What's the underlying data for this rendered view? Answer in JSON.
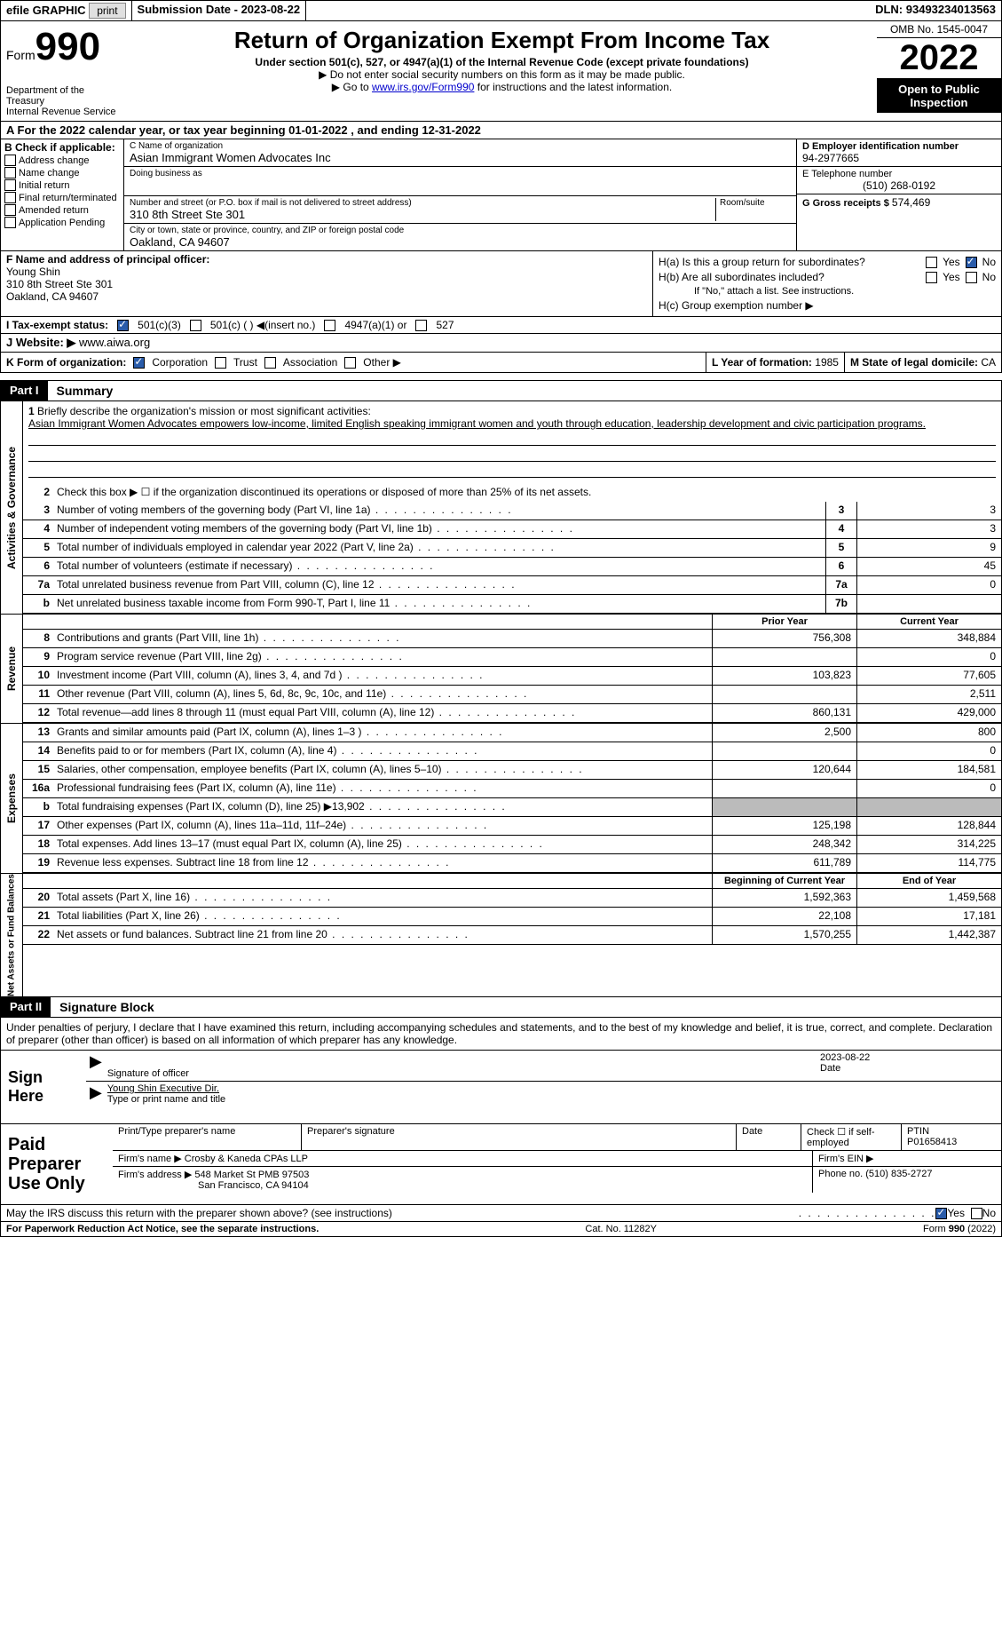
{
  "topbar": {
    "efile": "efile GRAPHIC",
    "print": "print",
    "subdate_label": "Submission Date - ",
    "subdate": "2023-08-22",
    "dln_label": "DLN: ",
    "dln": "93493234013563"
  },
  "header": {
    "form_word": "Form",
    "form_num": "990",
    "dept": "Department of the Treasury",
    "irs": "Internal Revenue Service",
    "title": "Return of Organization Exempt From Income Tax",
    "subtitle": "Under section 501(c), 527, or 4947(a)(1) of the Internal Revenue Code (except private foundations)",
    "note1": "▶ Do not enter social security numbers on this form as it may be made public.",
    "note2_pre": "▶ Go to ",
    "note2_link": "www.irs.gov/Form990",
    "note2_post": " for instructions and the latest information.",
    "omb": "OMB No. 1545-0047",
    "year": "2022",
    "inspect": "Open to Public Inspection"
  },
  "row_a": "A For the 2022 calendar year, or tax year beginning 01-01-2022   , and ending 12-31-2022",
  "section_b": {
    "header": "B Check if applicable:",
    "items": [
      "Address change",
      "Name change",
      "Initial return",
      "Final return/terminated",
      "Amended return",
      "Application Pending"
    ]
  },
  "section_c": {
    "name_label": "C Name of organization",
    "name": "Asian Immigrant Women Advocates Inc",
    "dba_label": "Doing business as",
    "dba": "",
    "addr_label": "Number and street (or P.O. box if mail is not delivered to street address)",
    "room_label": "Room/suite",
    "addr": "310 8th Street Ste 301",
    "city_label": "City or town, state or province, country, and ZIP or foreign postal code",
    "city": "Oakland, CA  94607"
  },
  "section_d": {
    "ein_label": "D Employer identification number",
    "ein": "94-2977665",
    "phone_label": "E Telephone number",
    "phone": "(510) 268-0192",
    "receipts_label": "G Gross receipts $ ",
    "receipts": "574,469"
  },
  "section_f": {
    "label": "F  Name and address of principal officer:",
    "name": "Young Shin",
    "addr1": "310 8th Street Ste 301",
    "addr2": "Oakland, CA  94607"
  },
  "section_h": {
    "ha": "H(a)  Is this a group return for subordinates?",
    "hb": "H(b)  Are all subordinates included?",
    "hb_note": "If \"No,\" attach a list. See instructions.",
    "hc": "H(c)  Group exemption number ▶",
    "yes": "Yes",
    "no": "No"
  },
  "tax_status": {
    "label": "I     Tax-exempt status:",
    "opt1": "501(c)(3)",
    "opt2": "501(c) (  ) ◀(insert no.)",
    "opt3": "4947(a)(1) or",
    "opt4": "527"
  },
  "website": {
    "label": "J    Website: ▶  ",
    "value": "www.aiwa.org"
  },
  "form_org": {
    "k": "K Form of organization:",
    "corp": "Corporation",
    "trust": "Trust",
    "assoc": "Association",
    "other": "Other ▶",
    "l": "L Year of formation: ",
    "l_val": "1985",
    "m": "M State of legal domicile: ",
    "m_val": "CA"
  },
  "part1": {
    "label": "Part I",
    "title": "Summary"
  },
  "governance": {
    "tab": "Activities & Governance",
    "q1": "Briefly describe the organization's mission or most significant activities:",
    "mission": "Asian Immigrant Women Advocates empowers low-income, limited English speaking immigrant women and youth through education, leadership development and civic participation programs.",
    "q2": "Check this box ▶ ☐  if the organization discontinued its operations or disposed of more than 25% of its net assets.",
    "lines": [
      {
        "n": "3",
        "t": "Number of voting members of the governing body (Part VI, line 1a)",
        "box": "3",
        "v": "3"
      },
      {
        "n": "4",
        "t": "Number of independent voting members of the governing body (Part VI, line 1b)",
        "box": "4",
        "v": "3"
      },
      {
        "n": "5",
        "t": "Total number of individuals employed in calendar year 2022 (Part V, line 2a)",
        "box": "5",
        "v": "9"
      },
      {
        "n": "6",
        "t": "Total number of volunteers (estimate if necessary)",
        "box": "6",
        "v": "45"
      },
      {
        "n": "7a",
        "t": "Total unrelated business revenue from Part VIII, column (C), line 12",
        "box": "7a",
        "v": "0"
      },
      {
        "n": "b",
        "t": "Net unrelated business taxable income from Form 990-T, Part I, line 11",
        "box": "7b",
        "v": ""
      }
    ]
  },
  "revenue": {
    "tab": "Revenue",
    "head_prior": "Prior Year",
    "head_curr": "Current Year",
    "lines": [
      {
        "n": "8",
        "t": "Contributions and grants (Part VIII, line 1h)",
        "p": "756,308",
        "c": "348,884"
      },
      {
        "n": "9",
        "t": "Program service revenue (Part VIII, line 2g)",
        "p": "",
        "c": "0"
      },
      {
        "n": "10",
        "t": "Investment income (Part VIII, column (A), lines 3, 4, and 7d )",
        "p": "103,823",
        "c": "77,605"
      },
      {
        "n": "11",
        "t": "Other revenue (Part VIII, column (A), lines 5, 6d, 8c, 9c, 10c, and 11e)",
        "p": "",
        "c": "2,511"
      },
      {
        "n": "12",
        "t": "Total revenue—add lines 8 through 11 (must equal Part VIII, column (A), line 12)",
        "p": "860,131",
        "c": "429,000"
      }
    ]
  },
  "expenses": {
    "tab": "Expenses",
    "lines": [
      {
        "n": "13",
        "t": "Grants and similar amounts paid (Part IX, column (A), lines 1–3 )",
        "p": "2,500",
        "c": "800"
      },
      {
        "n": "14",
        "t": "Benefits paid to or for members (Part IX, column (A), line 4)",
        "p": "",
        "c": "0"
      },
      {
        "n": "15",
        "t": "Salaries, other compensation, employee benefits (Part IX, column (A), lines 5–10)",
        "p": "120,644",
        "c": "184,581"
      },
      {
        "n": "16a",
        "t": "Professional fundraising fees (Part IX, column (A), line 11e)",
        "p": "",
        "c": "0"
      },
      {
        "n": "b",
        "t": "Total fundraising expenses (Part IX, column (D), line 25) ▶13,902",
        "p": "grey",
        "c": "grey"
      },
      {
        "n": "17",
        "t": "Other expenses (Part IX, column (A), lines 11a–11d, 11f–24e)",
        "p": "125,198",
        "c": "128,844"
      },
      {
        "n": "18",
        "t": "Total expenses. Add lines 13–17 (must equal Part IX, column (A), line 25)",
        "p": "248,342",
        "c": "314,225"
      },
      {
        "n": "19",
        "t": "Revenue less expenses. Subtract line 18 from line 12",
        "p": "611,789",
        "c": "114,775"
      }
    ]
  },
  "netassets": {
    "tab": "Net Assets or Fund Balances",
    "head_begin": "Beginning of Current Year",
    "head_end": "End of Year",
    "lines": [
      {
        "n": "20",
        "t": "Total assets (Part X, line 16)",
        "p": "1,592,363",
        "c": "1,459,568"
      },
      {
        "n": "21",
        "t": "Total liabilities (Part X, line 26)",
        "p": "22,108",
        "c": "17,181"
      },
      {
        "n": "22",
        "t": "Net assets or fund balances. Subtract line 21 from line 20",
        "p": "1,570,255",
        "c": "1,442,387"
      }
    ]
  },
  "part2": {
    "label": "Part II",
    "title": "Signature Block",
    "intro": "Under penalties of perjury, I declare that I have examined this return, including accompanying schedules and statements, and to the best of my knowledge and belief, it is true, correct, and complete. Declaration of preparer (other than officer) is based on all information of which preparer has any knowledge."
  },
  "sign": {
    "label": "Sign Here",
    "sig_of": "Signature of officer",
    "date": "2023-08-22",
    "name": "Young Shin  Executive Dir.",
    "name_label": "Type or print name and title"
  },
  "preparer": {
    "label": "Paid Preparer Use Only",
    "head_name": "Print/Type preparer's name",
    "head_sig": "Preparer's signature",
    "head_date": "Date",
    "check_label": "Check ☐ if self-employed",
    "ptin_label": "PTIN",
    "ptin": "P01658413",
    "firm_name_label": "Firm's name    ▶",
    "firm_name": "Crosby & Kaneda CPAs LLP",
    "firm_ein_label": "Firm's EIN ▶",
    "firm_addr_label": "Firm's address ▶",
    "firm_addr1": "548 Market St PMB 97503",
    "firm_addr2": "San Francisco, CA  94104",
    "phone_label": "Phone no. ",
    "phone": "(510) 835-2727"
  },
  "discuss": {
    "text": "May the IRS discuss this return with the preparer shown above? (see instructions)",
    "yes": "Yes",
    "no": "No"
  },
  "footer": {
    "left": "For Paperwork Reduction Act Notice, see the separate instructions.",
    "mid": "Cat. No. 11282Y",
    "right": "Form 990 (2022)"
  }
}
